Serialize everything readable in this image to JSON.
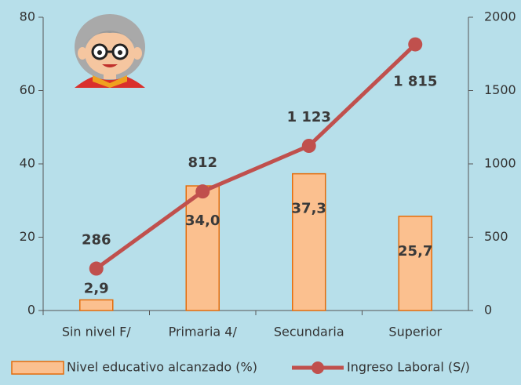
{
  "chart_data": {
    "type": "bar-line",
    "categories": [
      "Sin nivel F/",
      "Primaria 4/",
      "Secundaria",
      "Superior"
    ],
    "series": [
      {
        "name": "Nivel educativo alcanzado (%)",
        "type": "bar",
        "color": "#fbc08f",
        "edge_color": "#e46c0a",
        "values": [
          2.9,
          34.0,
          37.3,
          25.7
        ],
        "value_labels": [
          "2,9",
          "34,0",
          "37,3",
          "25,7"
        ]
      },
      {
        "name": "Ingreso Laboral (S/)",
        "type": "line",
        "axis": "y2",
        "color": "#c0504d",
        "values": [
          286,
          812,
          1123,
          1815
        ],
        "value_labels": [
          "286",
          "812",
          "1 123",
          "1 815"
        ]
      }
    ],
    "ylim": [
      0,
      80
    ],
    "yticks": [
      0,
      20,
      40,
      60,
      80
    ],
    "y2lim": [
      0,
      2000
    ],
    "y2ticks": [
      0,
      500,
      1000,
      1500,
      2000
    ],
    "grid": false
  }
}
